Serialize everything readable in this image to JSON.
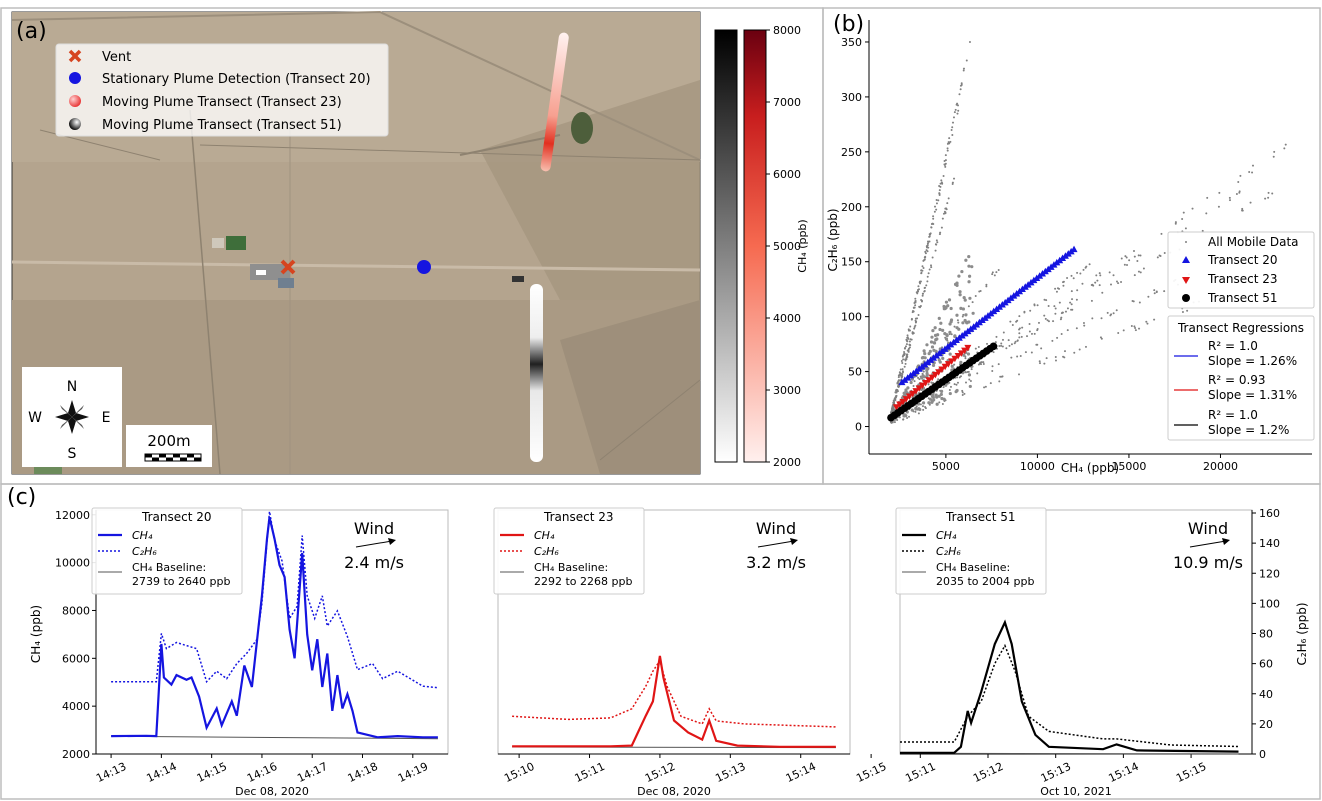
{
  "panels": {
    "a": "(a)",
    "b": "(b)",
    "c": "(c)"
  },
  "map": {
    "legend": [
      {
        "label": "Vent",
        "symbol": "x",
        "color": "#d6441f"
      },
      {
        "label": "Stationary Plume Detection (Transect 20)",
        "symbol": "circle",
        "color": "#1515e0"
      },
      {
        "label": "Moving Plume Transect (Transect 23)",
        "symbol": "circle-red-gradient",
        "color": "#f06060"
      },
      {
        "label": "Moving Plume Transect (Transect 51)",
        "symbol": "circle-black-gradient",
        "color": "#333333"
      }
    ],
    "compass": {
      "n": "N",
      "s": "S",
      "e": "E",
      "w": "W"
    },
    "scale": "200m",
    "colorbar": {
      "label": "CH₄ (ppb)",
      "ticks": [
        2000,
        3000,
        4000,
        5000,
        6000,
        7000,
        8000
      ],
      "range": [
        2000,
        8000
      ]
    }
  },
  "chart_data": [
    {
      "panel": "(b)",
      "type": "scatter",
      "xlabel": "CH₄ (ppb)",
      "ylabel": "C₂H₆ (ppb)",
      "xlim": [
        800,
        25000
      ],
      "ylim": [
        -25,
        370
      ],
      "xticks": [
        5000,
        10000,
        15000,
        20000
      ],
      "yticks": [
        0,
        50,
        100,
        150,
        200,
        250,
        300,
        350
      ],
      "legend_position": "right",
      "series": [
        {
          "name": "All Mobile Data",
          "marker": "dot",
          "color": "#808080",
          "bands": [
            {
              "x": [
                2000,
                5200
              ],
              "y": [
                10,
                210
              ]
            },
            {
              "x": [
                2000,
                5600
              ],
              "y": [
                10,
                235
              ]
            },
            {
              "x": [
                2000,
                6600
              ],
              "y": [
                10,
                370
              ]
            },
            {
              "x": [
                2000,
                6200
              ],
              "y": [
                10,
                340
              ]
            },
            {
              "x": [
                2000,
                5800
              ],
              "y": [
                10,
                300
              ]
            },
            {
              "x": [
                2000,
                8000
              ],
              "y": [
                10,
                148
              ]
            },
            {
              "x": [
                2000,
                13000
              ],
              "y": [
                10,
                150
              ]
            },
            {
              "x": [
                2000,
                21500
              ],
              "y": [
                10,
                218
              ]
            },
            {
              "x": [
                2000,
                24000
              ],
              "y": [
                10,
                260
              ]
            },
            {
              "x": [
                2000,
                12000
              ],
              "y": [
                10,
                110
              ]
            },
            {
              "x": [
                2000,
                20000
              ],
              "y": [
                10,
                150
              ]
            },
            {
              "x": [
                2000,
                20000
              ],
              "y": [
                5,
                120
              ]
            },
            {
              "x": [
                2000,
                23000
              ],
              "y": [
                10,
                215
              ]
            }
          ]
        },
        {
          "name": "Transect 20",
          "marker": "triangle-up",
          "color": "#1515e0",
          "x": [
            2600,
            12000
          ],
          "y": [
            40,
            161
          ]
        },
        {
          "name": "Transect 23",
          "marker": "triangle-down",
          "color": "#e01515",
          "x": [
            2300,
            6200
          ],
          "y": [
            18,
            72
          ]
        },
        {
          "name": "Transect 51",
          "marker": "circle",
          "color": "#000000",
          "x": [
            2000,
            7600
          ],
          "y": [
            8,
            73
          ]
        }
      ],
      "regressions_title": "Transect Regressions",
      "regressions": [
        {
          "r2": "R² = 1.0",
          "slope": "Slope = 1.26%",
          "color": "#1515e0"
        },
        {
          "r2": "R² = 0.93",
          "slope": "Slope = 1.31%",
          "color": "#e01515"
        },
        {
          "r2": "R² = 1.0",
          "slope": "Slope = 1.2%",
          "color": "#000000"
        }
      ]
    },
    {
      "panel": "(c)",
      "type": "line",
      "ylabel_left": "CH₄ (ppb)",
      "ylabel_right": "C₂H₆ (ppb)",
      "ylim_left": [
        2000,
        12200
      ],
      "ylim_right": [
        0,
        162
      ],
      "yticks_left": [
        2000,
        4000,
        6000,
        8000,
        10000,
        12000
      ],
      "yticks_right": [
        0,
        20,
        40,
        60,
        80,
        100,
        120,
        140,
        160
      ],
      "subplots": [
        {
          "title": "Transect 20",
          "date": "Dec 08, 2020",
          "color": "#1515e0",
          "xticks": [
            "14:13",
            "14:14",
            "14:15",
            "14:16",
            "14:17",
            "14:18",
            "14:19"
          ],
          "xlim": [
            0,
            7
          ],
          "wind": {
            "label": "Wind",
            "speed": "2.4 m/s"
          },
          "legend": {
            "ch4": "CH₄",
            "c2h6": "C₂H₆",
            "baseline": "CH₄ Baseline:",
            "baseline_range": "2739 to 2640 ppb"
          },
          "baseline": [
            [
              0.3,
              2739
            ],
            [
              6.8,
              2640
            ]
          ],
          "ch4": [
            [
              0.3,
              2750
            ],
            [
              1.0,
              2760
            ],
            [
              1.2,
              2750
            ],
            [
              1.3,
              6600
            ],
            [
              1.35,
              5200
            ],
            [
              1.5,
              4900
            ],
            [
              1.6,
              5300
            ],
            [
              1.8,
              5100
            ],
            [
              1.9,
              5200
            ],
            [
              2.05,
              4400
            ],
            [
              2.2,
              3100
            ],
            [
              2.4,
              3900
            ],
            [
              2.5,
              3200
            ],
            [
              2.7,
              4200
            ],
            [
              2.8,
              3600
            ],
            [
              2.95,
              5700
            ],
            [
              3.1,
              4800
            ],
            [
              3.2,
              6700
            ],
            [
              3.3,
              8600
            ],
            [
              3.4,
              11000
            ],
            [
              3.45,
              11900
            ],
            [
              3.55,
              11000
            ],
            [
              3.65,
              9900
            ],
            [
              3.75,
              9400
            ],
            [
              3.85,
              7200
            ],
            [
              3.95,
              6000
            ],
            [
              4.1,
              10400
            ],
            [
              4.2,
              7000
            ],
            [
              4.3,
              5500
            ],
            [
              4.4,
              6800
            ],
            [
              4.5,
              4800
            ],
            [
              4.6,
              6200
            ],
            [
              4.7,
              3800
            ],
            [
              4.8,
              5300
            ],
            [
              4.9,
              3900
            ],
            [
              5.0,
              4500
            ],
            [
              5.1,
              3800
            ],
            [
              5.2,
              2900
            ],
            [
              5.6,
              2700
            ],
            [
              6.0,
              2750
            ],
            [
              6.5,
              2700
            ],
            [
              6.8,
              2700
            ]
          ],
          "c2h6": [
            [
              0.3,
              48
            ],
            [
              1.2,
              48
            ],
            [
              1.3,
              80
            ],
            [
              1.4,
              70
            ],
            [
              1.6,
              74
            ],
            [
              1.8,
              72
            ],
            [
              2.0,
              70
            ],
            [
              2.2,
              48
            ],
            [
              2.4,
              55
            ],
            [
              2.6,
              50
            ],
            [
              2.8,
              60
            ],
            [
              3.0,
              67
            ],
            [
              3.2,
              76
            ],
            [
              3.3,
              100
            ],
            [
              3.45,
              161
            ],
            [
              3.55,
              142
            ],
            [
              3.7,
              128
            ],
            [
              3.85,
              90
            ],
            [
              4.0,
              98
            ],
            [
              4.1,
              145
            ],
            [
              4.2,
              105
            ],
            [
              4.35,
              90
            ],
            [
              4.5,
              105
            ],
            [
              4.6,
              85
            ],
            [
              4.8,
              95
            ],
            [
              5.0,
              78
            ],
            [
              5.2,
              56
            ],
            [
              5.5,
              60
            ],
            [
              5.7,
              50
            ],
            [
              6.0,
              55
            ],
            [
              6.5,
              45
            ],
            [
              6.8,
              44
            ]
          ]
        },
        {
          "title": "Transect 23",
          "date": "Dec 08, 2020",
          "color": "#e01515",
          "xticks": [
            "15:10",
            "15:11",
            "15:12",
            "15:13",
            "15:14",
            "15:15"
          ],
          "xlim": [
            0,
            5
          ],
          "wind": {
            "label": "Wind",
            "speed": "3.2 m/s"
          },
          "legend": {
            "ch4": "CH₄",
            "c2h6": "C₂H₆",
            "baseline": "CH₄ Baseline:",
            "baseline_range": "2292 to 2268 ppb"
          },
          "baseline": [
            [
              0.2,
              2292
            ],
            [
              4.8,
              2268
            ]
          ],
          "ch4": [
            [
              0.2,
              2320
            ],
            [
              1.6,
              2320
            ],
            [
              1.9,
              2350
            ],
            [
              2.1,
              3600
            ],
            [
              2.2,
              4200
            ],
            [
              2.3,
              6100
            ],
            [
              2.35,
              5200
            ],
            [
              2.5,
              3400
            ],
            [
              2.7,
              2900
            ],
            [
              2.9,
              2600
            ],
            [
              3.0,
              3400
            ],
            [
              3.1,
              2550
            ],
            [
              3.4,
              2350
            ],
            [
              4.0,
              2300
            ],
            [
              4.8,
              2300
            ]
          ],
          "c2h6": [
            [
              0.2,
              25
            ],
            [
              1.0,
              23
            ],
            [
              1.6,
              24
            ],
            [
              1.9,
              30
            ],
            [
              2.1,
              45
            ],
            [
              2.2,
              55
            ],
            [
              2.3,
              62
            ],
            [
              2.4,
              45
            ],
            [
              2.6,
              25
            ],
            [
              2.9,
              20
            ],
            [
              3.0,
              30
            ],
            [
              3.1,
              22
            ],
            [
              3.5,
              20
            ],
            [
              4.8,
              18
            ]
          ]
        },
        {
          "title": "Transect 51",
          "date": "Oct 10, 2021",
          "color": "#000000",
          "xticks": [
            "15:11",
            "15:12",
            "15:13",
            "15:14",
            "15:15"
          ],
          "xlim": [
            0,
            5.2
          ],
          "wind": {
            "label": "Wind",
            "speed": "10.9 m/s"
          },
          "legend": {
            "ch4": "CH₄",
            "c2h6": "C₂H₆",
            "baseline": "CH₄ Baseline:",
            "baseline_range": "2035 to 2004 ppb"
          },
          "baseline": [
            [
              0.0,
              2035
            ],
            [
              5.0,
              2004
            ]
          ],
          "ch4": [
            [
              0.0,
              2050
            ],
            [
              0.8,
              2050
            ],
            [
              0.9,
              2300
            ],
            [
              1.0,
              3800
            ],
            [
              1.05,
              3300
            ],
            [
              1.2,
              4600
            ],
            [
              1.4,
              6600
            ],
            [
              1.55,
              7500
            ],
            [
              1.65,
              6600
            ],
            [
              1.8,
              4200
            ],
            [
              2.0,
              2800
            ],
            [
              2.2,
              2300
            ],
            [
              3.0,
              2200
            ],
            [
              3.2,
              2400
            ],
            [
              3.5,
              2150
            ],
            [
              5.0,
              2100
            ]
          ],
          "c2h6": [
            [
              0.0,
              8
            ],
            [
              0.8,
              8
            ],
            [
              1.0,
              25
            ],
            [
              1.2,
              35
            ],
            [
              1.4,
              60
            ],
            [
              1.55,
              72
            ],
            [
              1.7,
              55
            ],
            [
              1.9,
              25
            ],
            [
              2.2,
              15
            ],
            [
              3.0,
              10
            ],
            [
              3.2,
              10
            ],
            [
              4.0,
              6
            ],
            [
              5.0,
              5
            ]
          ]
        }
      ]
    }
  ]
}
